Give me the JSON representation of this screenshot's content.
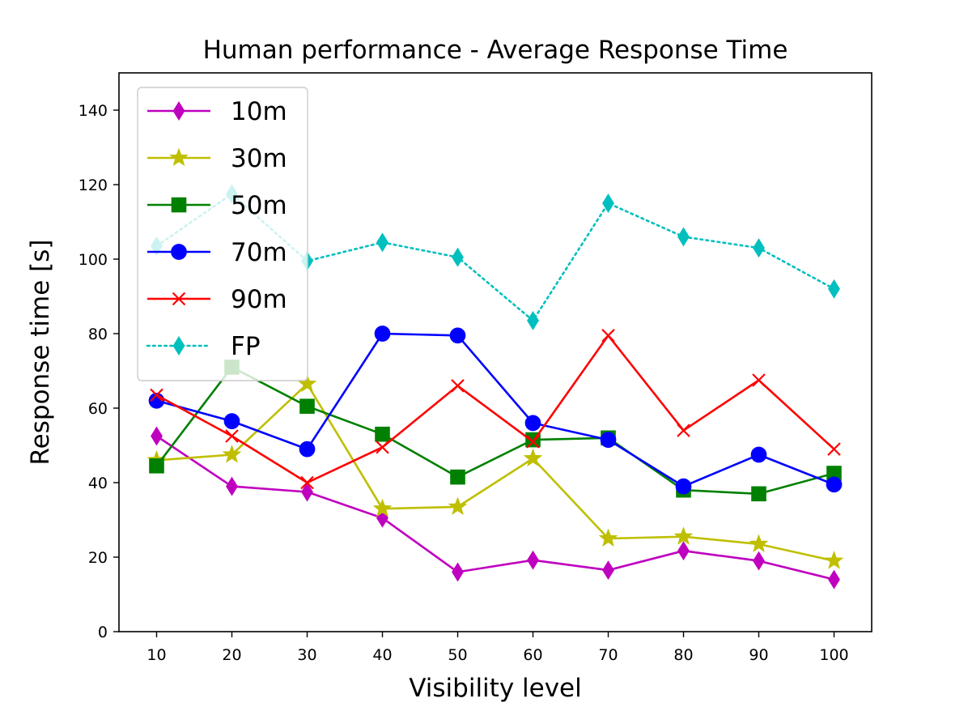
{
  "chart_data": {
    "type": "line",
    "title": "Human performance - Average Response Time",
    "xlabel": "Visibility level",
    "ylabel": "Response time [s]",
    "x": [
      10,
      20,
      30,
      40,
      50,
      60,
      70,
      80,
      90,
      100
    ],
    "xticks": [
      "10",
      "20",
      "30",
      "40",
      "50",
      "60",
      "70",
      "80",
      "90",
      "100"
    ],
    "yticks": [
      "0",
      "20",
      "40",
      "60",
      "80",
      "100",
      "120",
      "140"
    ],
    "ylim": [
      0,
      150
    ],
    "xlim": [
      5,
      105
    ],
    "grid": false,
    "legend_position": "upper-left",
    "series": [
      {
        "name": "10m",
        "color": "#bf00bf",
        "marker": "thin_diamond",
        "linestyle": "solid",
        "values": [
          52.5,
          39,
          37.5,
          30.5,
          16,
          19.2,
          16.5,
          21.7,
          19,
          14
        ]
      },
      {
        "name": "30m",
        "color": "#bfbf00",
        "marker": "star",
        "linestyle": "solid",
        "values": [
          46,
          47.5,
          66.5,
          33,
          33.5,
          46.5,
          25,
          25.5,
          23.5,
          19
        ]
      },
      {
        "name": "50m",
        "color": "#008000",
        "marker": "square",
        "linestyle": "solid",
        "values": [
          44.5,
          71,
          60.5,
          53,
          41.5,
          51.5,
          52,
          38,
          37,
          42.5
        ]
      },
      {
        "name": "70m",
        "color": "#0000ff",
        "marker": "circle",
        "linestyle": "solid",
        "values": [
          62,
          56.5,
          49,
          80,
          79.5,
          56,
          51.5,
          39,
          47.5,
          39.5
        ]
      },
      {
        "name": "90m",
        "color": "#ff0000",
        "marker": "x",
        "linestyle": "solid",
        "values": [
          63.5,
          52.5,
          40,
          49.5,
          66,
          51,
          79.5,
          54,
          67.5,
          49
        ]
      },
      {
        "name": "FP",
        "color": "#00bfbf",
        "marker": "thin_diamond",
        "linestyle": "dotted",
        "values": [
          103.5,
          117.5,
          99.5,
          104.5,
          100.5,
          83.5,
          115,
          106,
          103,
          92
        ]
      }
    ]
  }
}
